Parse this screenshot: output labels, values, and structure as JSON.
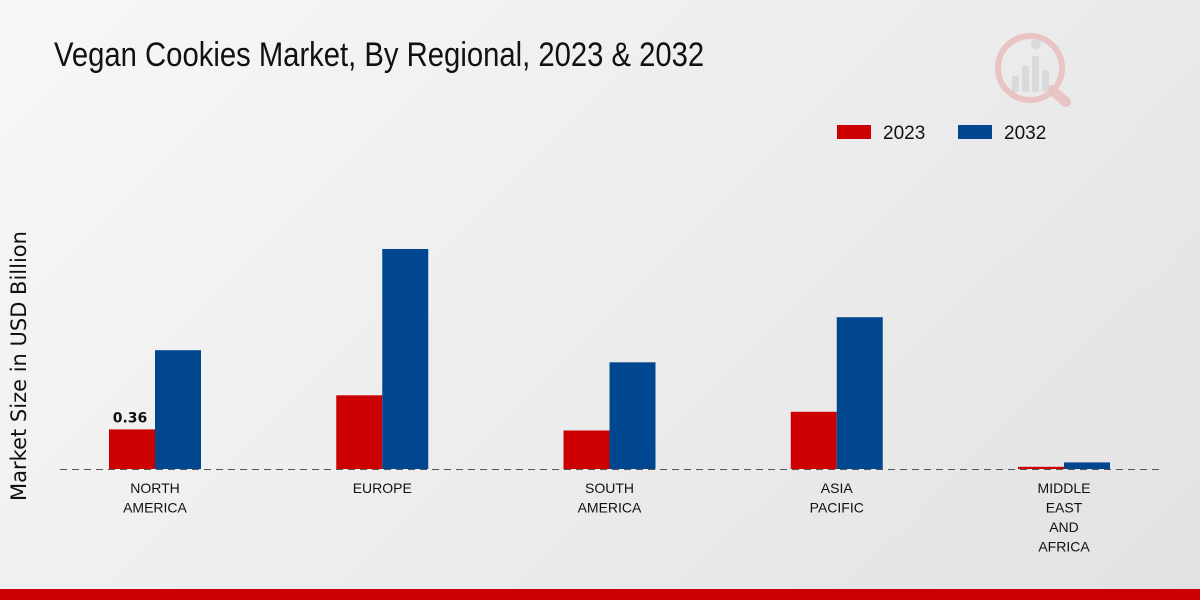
{
  "title": "Vegan Cookies Market, By Regional, 2023 & 2032",
  "logo": {
    "icon": "market-research-logo-icon"
  },
  "colors": {
    "series_2023": "#cc0000",
    "series_2032": "#00478f",
    "baseline": "#555555",
    "bottom_bar": "#cc0000"
  },
  "chart_data": {
    "type": "bar",
    "title": "Vegan Cookies Market, By Regional, 2023 & 2032",
    "xlabel": "",
    "ylabel": "Market Size in USD Billion",
    "categories": [
      [
        "NORTH",
        "AMERICA"
      ],
      [
        "EUROPE"
      ],
      [
        "SOUTH",
        "AMERICA"
      ],
      [
        "ASIA",
        "PACIFIC"
      ],
      [
        "MIDDLE",
        "EAST",
        "AND",
        "AFRICA"
      ]
    ],
    "series": [
      {
        "name": "2023",
        "values": [
          0.36,
          0.67,
          0.35,
          0.52,
          0.02
        ]
      },
      {
        "name": "2032",
        "values": [
          1.08,
          2.0,
          0.97,
          1.38,
          0.06
        ]
      }
    ],
    "data_labels": [
      {
        "series": 0,
        "index": 0,
        "text": "0.36"
      }
    ],
    "ylim": [
      0,
      2.4
    ],
    "grid": false,
    "legend_position": "top-right"
  }
}
